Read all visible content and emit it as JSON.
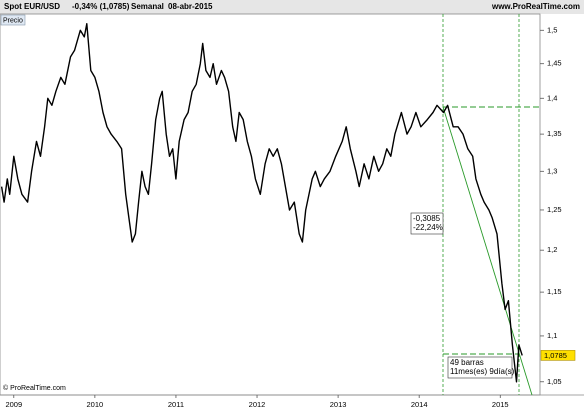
{
  "header": {
    "symbol": "Spot EUR/USD",
    "change": "-0,34% (1,0785)",
    "period": "Semanal",
    "date": "08-abr-2015",
    "site": "www.ProRealTime.com"
  },
  "chart_data": {
    "type": "line",
    "legend": "Precio",
    "log_scale": true,
    "grid": false,
    "x": [
      2008.85,
      2008.88,
      2008.92,
      2008.95,
      2009.0,
      2009.05,
      2009.1,
      2009.17,
      2009.22,
      2009.28,
      2009.33,
      2009.38,
      2009.42,
      2009.47,
      2009.52,
      2009.58,
      2009.63,
      2009.7,
      2009.75,
      2009.82,
      2009.87,
      2009.9,
      2009.95,
      2010.0,
      2010.05,
      2010.1,
      2010.15,
      2010.2,
      2010.27,
      2010.33,
      2010.38,
      2010.42,
      2010.46,
      2010.5,
      2010.54,
      2010.58,
      2010.62,
      2010.66,
      2010.7,
      2010.75,
      2010.8,
      2010.83,
      2010.88,
      2010.92,
      2010.96,
      2011.0,
      2011.04,
      2011.1,
      2011.15,
      2011.2,
      2011.25,
      2011.3,
      2011.33,
      2011.37,
      2011.42,
      2011.46,
      2011.5,
      2011.56,
      2011.6,
      2011.65,
      2011.7,
      2011.74,
      2011.78,
      2011.83,
      2011.88,
      2011.93,
      2011.98,
      2012.04,
      2012.1,
      2012.15,
      2012.2,
      2012.25,
      2012.3,
      2012.35,
      2012.4,
      2012.46,
      2012.52,
      2012.56,
      2012.6,
      2012.68,
      2012.72,
      2012.78,
      2012.83,
      2012.9,
      2012.97,
      2013.05,
      2013.1,
      2013.15,
      2013.22,
      2013.26,
      2013.32,
      2013.38,
      2013.44,
      2013.5,
      2013.55,
      2013.6,
      2013.65,
      2013.7,
      2013.78,
      2013.85,
      2013.9,
      2013.96,
      2014.02,
      2014.1,
      2014.17,
      2014.22,
      2014.3,
      2014.35,
      2014.42,
      2014.48,
      2014.54,
      2014.6,
      2014.66,
      2014.7,
      2014.76,
      2014.8,
      2014.86,
      2014.9,
      2014.96,
      2015.02,
      2015.06,
      2015.1,
      2015.15,
      2015.2,
      2015.23,
      2015.27
    ],
    "series": [
      {
        "name": "Spot EUR/USD",
        "color": "#000000",
        "values": [
          1.28,
          1.26,
          1.29,
          1.27,
          1.32,
          1.29,
          1.27,
          1.26,
          1.3,
          1.34,
          1.32,
          1.36,
          1.4,
          1.39,
          1.41,
          1.43,
          1.42,
          1.46,
          1.47,
          1.5,
          1.49,
          1.51,
          1.44,
          1.43,
          1.41,
          1.38,
          1.36,
          1.35,
          1.34,
          1.33,
          1.27,
          1.24,
          1.21,
          1.22,
          1.26,
          1.3,
          1.28,
          1.27,
          1.31,
          1.37,
          1.4,
          1.41,
          1.35,
          1.32,
          1.33,
          1.29,
          1.34,
          1.37,
          1.38,
          1.41,
          1.42,
          1.45,
          1.48,
          1.44,
          1.43,
          1.45,
          1.42,
          1.44,
          1.43,
          1.41,
          1.36,
          1.34,
          1.38,
          1.37,
          1.34,
          1.32,
          1.29,
          1.27,
          1.31,
          1.33,
          1.32,
          1.33,
          1.31,
          1.28,
          1.25,
          1.26,
          1.22,
          1.21,
          1.25,
          1.29,
          1.3,
          1.28,
          1.29,
          1.3,
          1.32,
          1.34,
          1.36,
          1.33,
          1.3,
          1.28,
          1.31,
          1.29,
          1.32,
          1.3,
          1.31,
          1.33,
          1.32,
          1.35,
          1.38,
          1.35,
          1.36,
          1.38,
          1.36,
          1.37,
          1.38,
          1.39,
          1.38,
          1.39,
          1.36,
          1.36,
          1.35,
          1.33,
          1.32,
          1.29,
          1.27,
          1.26,
          1.25,
          1.24,
          1.22,
          1.16,
          1.13,
          1.14,
          1.09,
          1.05,
          1.09,
          1.0785
        ]
      }
    ],
    "xlim": [
      2008.83,
      2015.49
    ],
    "xticks": [
      2009,
      2010,
      2011,
      2012,
      2013,
      2014,
      2015
    ],
    "ylim": [
      1.036,
      1.525
    ],
    "yticks": [
      {
        "value": 1.05,
        "label": "1,05"
      },
      {
        "value": 1.1,
        "label": "1,1"
      },
      {
        "value": 1.15,
        "label": "1,15"
      },
      {
        "value": 1.2,
        "label": "1,2"
      },
      {
        "value": 1.25,
        "label": "1,25"
      },
      {
        "value": 1.3,
        "label": "1,3"
      },
      {
        "value": 1.35,
        "label": "1,35"
      },
      {
        "value": 1.4,
        "label": "1,4"
      },
      {
        "value": 1.45,
        "label": "1,45"
      },
      {
        "value": 1.5,
        "label": "1,5"
      }
    ],
    "last_label": "1,0785",
    "annotations": [
      {
        "lines": [
          "-0,3085",
          "-22,24%"
        ]
      },
      {
        "lines": [
          "49 barras",
          "11mes(es) 9día(s)"
        ]
      }
    ],
    "copyright": "© ProRealTime.com"
  }
}
